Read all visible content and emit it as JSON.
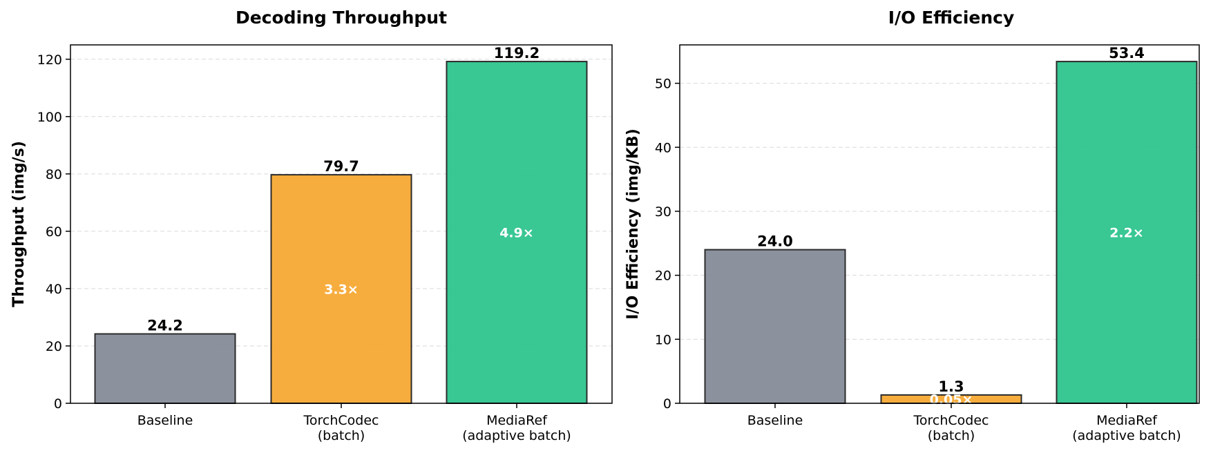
{
  "chart_data": [
    {
      "type": "bar",
      "title": "Decoding Throughput",
      "ylabel": "Throughput (img/s)",
      "xlabel": "",
      "categories": [
        "Baseline",
        "TorchCodec\n(batch)",
        "MediaRef\n(adaptive batch)"
      ],
      "values": [
        24.2,
        79.7,
        119.2
      ],
      "value_labels": [
        "24.2",
        "79.7",
        "119.2"
      ],
      "multipliers": [
        "",
        "3.3×",
        "4.9×"
      ],
      "ylim": [
        0,
        125
      ],
      "yticks": [
        0,
        20,
        40,
        60,
        80,
        100,
        120
      ],
      "grid": true,
      "colors": [
        "#868c98",
        "#f7a934",
        "#2ec48e"
      ]
    },
    {
      "type": "bar",
      "title": "I/O Efficiency",
      "ylabel": "I/O Efficiency (img/KB)",
      "xlabel": "",
      "categories": [
        "Baseline",
        "TorchCodec\n(batch)",
        "MediaRef\n(adaptive batch)"
      ],
      "values": [
        24.0,
        1.3,
        53.4
      ],
      "value_labels": [
        "24.0",
        "1.3",
        "53.4"
      ],
      "multipliers": [
        "",
        "0.05×",
        "2.2×"
      ],
      "ylim": [
        0,
        56
      ],
      "yticks": [
        0,
        10,
        20,
        30,
        40,
        50
      ],
      "grid": true,
      "colors": [
        "#868c98",
        "#f7a934",
        "#2ec48e"
      ]
    }
  ]
}
